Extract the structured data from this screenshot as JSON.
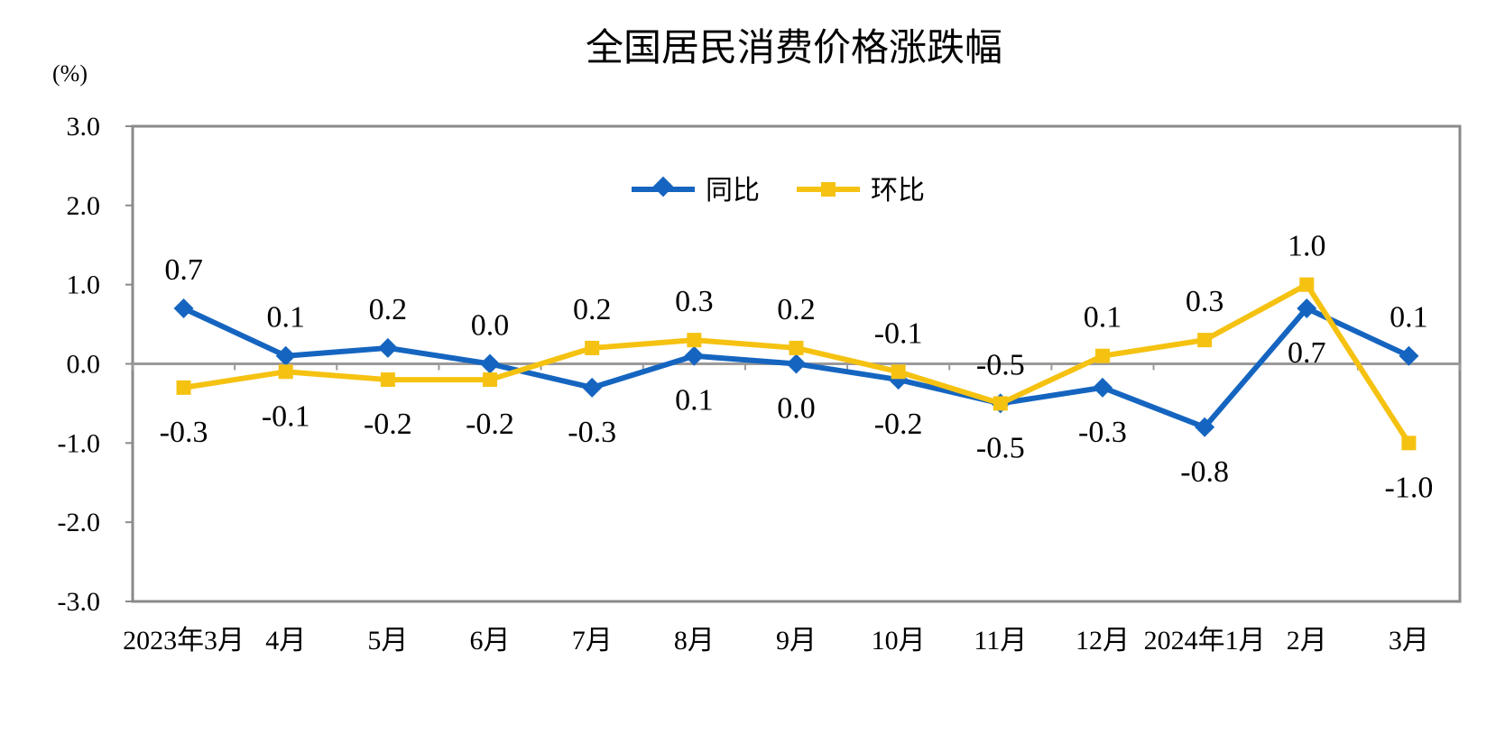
{
  "chart_data": {
    "type": "line",
    "title": "全国居民消费价格涨跌幅",
    "unit_label": "(%)",
    "categories": [
      "2023年3月",
      "4月",
      "5月",
      "6月",
      "7月",
      "8月",
      "9月",
      "10月",
      "11月",
      "12月",
      "2024年1月",
      "2月",
      "3月"
    ],
    "y_ticks": [
      "3.0",
      "2.0",
      "1.0",
      "0.0",
      "-1.0",
      "-2.0",
      "-3.0"
    ],
    "ylim": [
      -3,
      3
    ],
    "legend_position": "top-center",
    "grid": false,
    "series": [
      {
        "name": "同比",
        "color": "#1565C0",
        "marker": "diamond",
        "values": [
          0.7,
          0.1,
          0.2,
          0.0,
          -0.3,
          0.1,
          0.0,
          -0.2,
          -0.5,
          -0.3,
          -0.8,
          0.7,
          0.1
        ],
        "labels": [
          "0.7",
          "0.1",
          "0.2",
          "0.0",
          "-0.3",
          "0.1",
          "0.0",
          "-0.2",
          "-0.5",
          "-0.3",
          "-0.8",
          "0.7",
          "0.1"
        ]
      },
      {
        "name": "环比",
        "color": "#F5C211",
        "marker": "square",
        "values": [
          -0.3,
          -0.1,
          -0.2,
          -0.2,
          0.2,
          0.3,
          0.2,
          -0.1,
          -0.5,
          0.1,
          0.3,
          1.0,
          -1.0
        ],
        "labels": [
          "-0.3",
          "-0.1",
          "-0.2",
          "-0.2",
          "0.2",
          "0.3",
          "0.2",
          "-0.1",
          "-0.5",
          "0.1",
          "0.3",
          "1.0",
          "-1.0"
        ]
      }
    ]
  }
}
